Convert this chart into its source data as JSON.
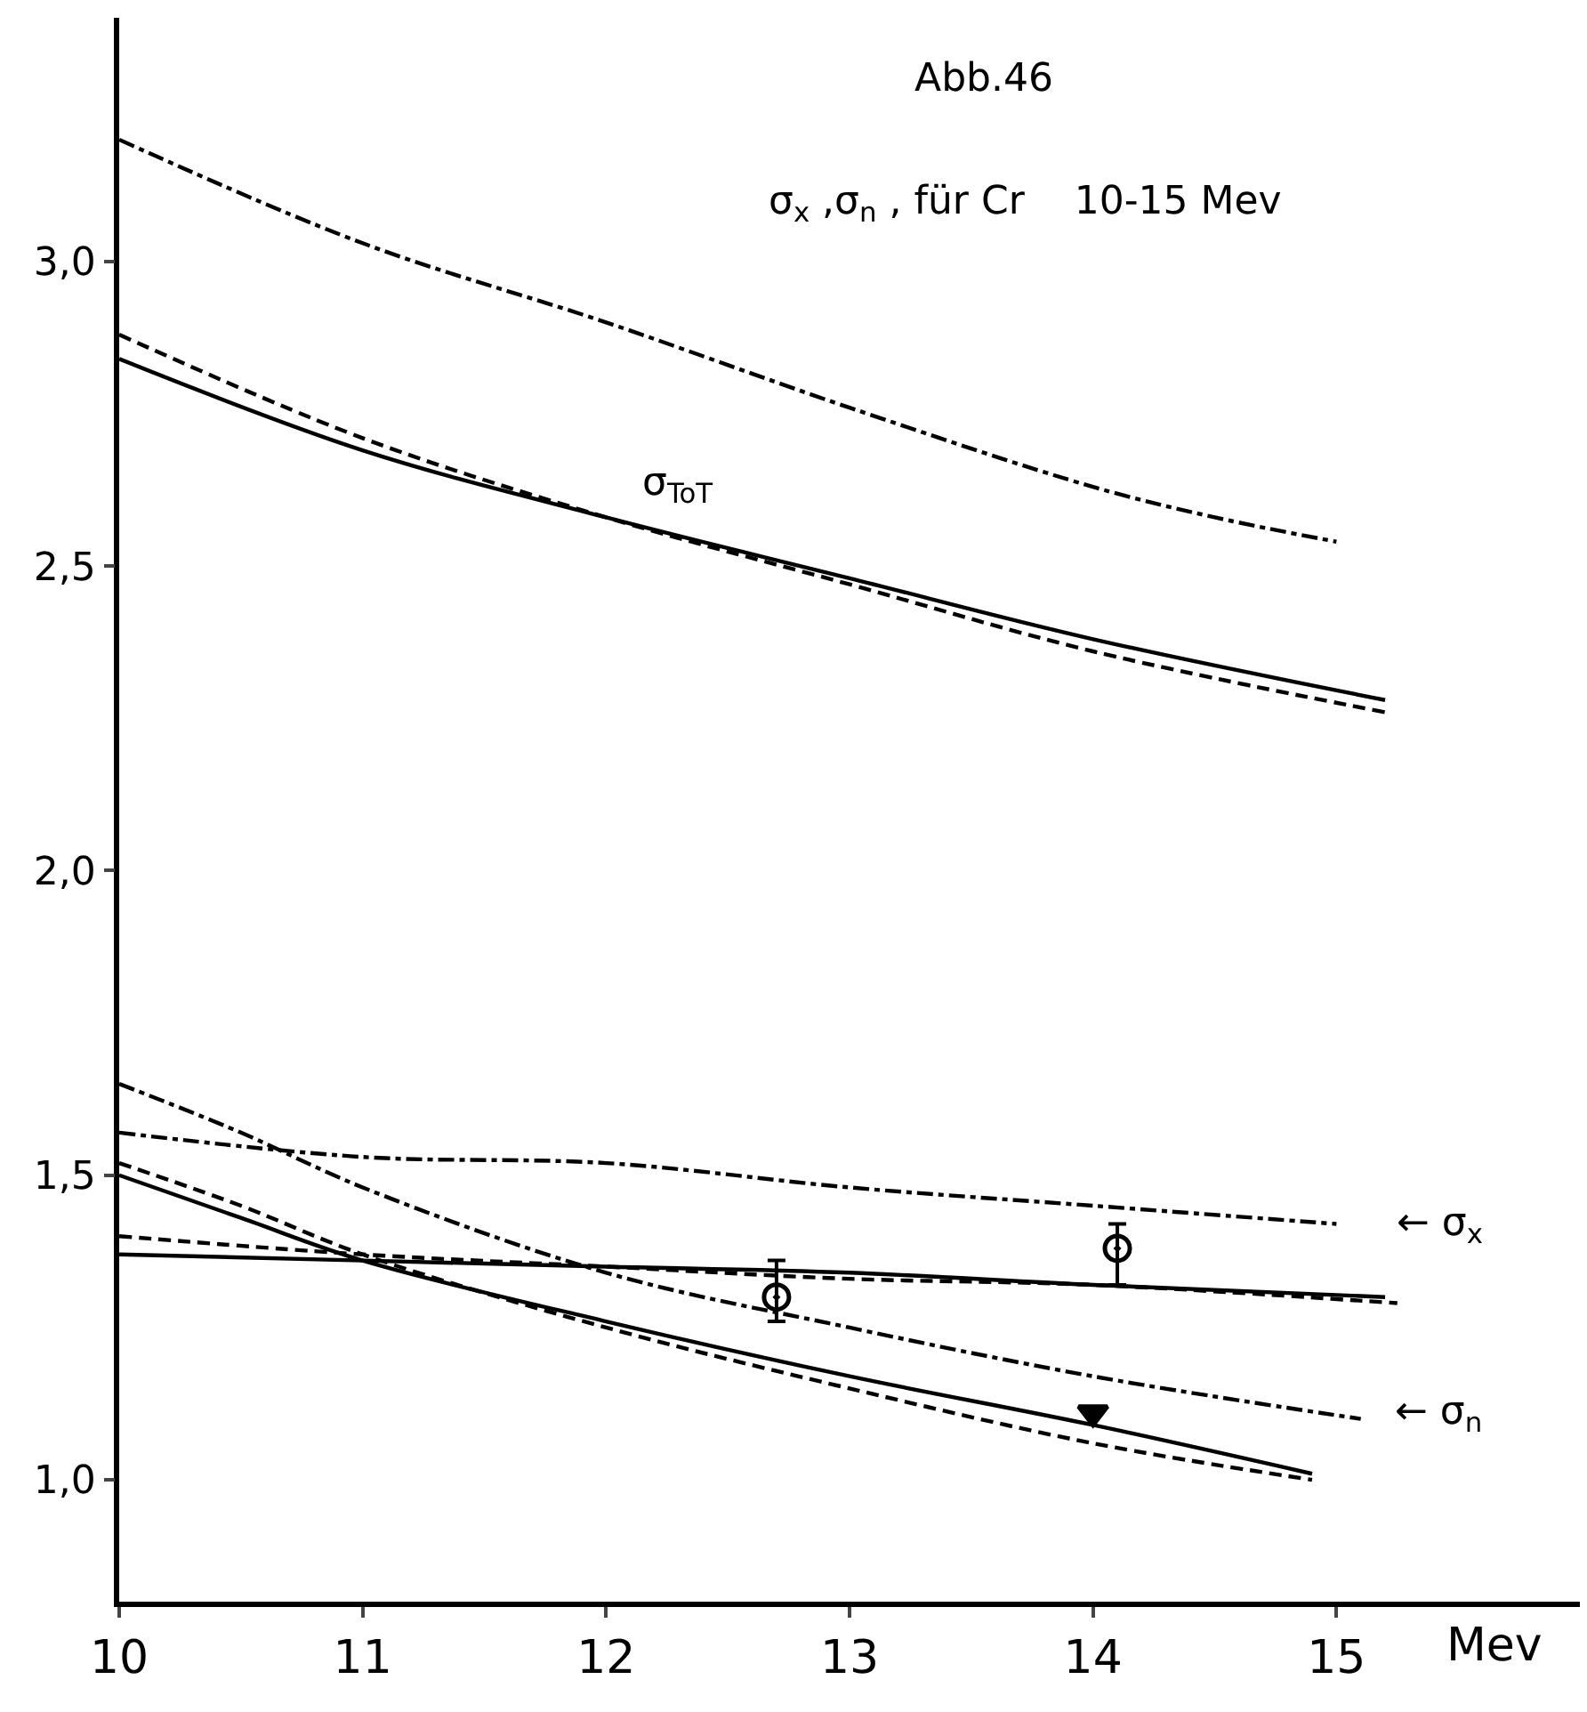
{
  "chart_data": {
    "type": "line",
    "title": "Abb.46",
    "subtitle": "σ$_{x}$ ,σ$_{n}$ , für Cr    10-15 Mev",
    "xlabel": "Mev",
    "xlim": [
      10,
      16
    ],
    "xticks": [
      10,
      11,
      12,
      13,
      14,
      15
    ],
    "ylim": [
      0.8,
      3.4
    ],
    "yticks": [
      {
        "value": 1.0,
        "label": "1,0"
      },
      {
        "value": 1.5,
        "label": "1,5"
      },
      {
        "value": 2.0,
        "label": "2,0"
      },
      {
        "value": 2.5,
        "label": "2,5"
      },
      {
        "value": 3.0,
        "label": "3,0"
      }
    ],
    "grid": false,
    "marker": "none",
    "series": [
      {
        "color": "#000000",
        "line_style": "dashdot",
        "x": [
          10,
          11,
          12,
          13,
          14,
          14.5,
          15
        ],
        "values": [
          3.2,
          3.03,
          2.9,
          2.76,
          2.63,
          2.58,
          2.54
        ]
      },
      {
        "color": "#000000",
        "line_style": "solid",
        "x": [
          10,
          11,
          12,
          13,
          14,
          15.2
        ],
        "values": [
          2.84,
          2.69,
          2.58,
          2.48,
          2.38,
          2.28
        ]
      },
      {
        "color": "#000000",
        "line_style": "dashed",
        "x": [
          10,
          11,
          12,
          13,
          14,
          15.2
        ],
        "values": [
          2.88,
          2.71,
          2.58,
          2.47,
          2.36,
          2.26
        ]
      },
      {
        "color": "#000000",
        "line_style": "dashdot",
        "x": [
          10,
          10.5,
          11,
          12,
          13,
          14,
          15.1
        ],
        "values": [
          1.65,
          1.57,
          1.48,
          1.34,
          1.25,
          1.17,
          1.1
        ]
      },
      {
        "color": "#000000",
        "line_style": "dashdot",
        "x": [
          10,
          11,
          12,
          13,
          14,
          15
        ],
        "values": [
          1.57,
          1.53,
          1.52,
          1.48,
          1.45,
          1.42
        ]
      },
      {
        "color": "#000000",
        "line_style": "solid",
        "x": [
          10,
          11,
          12,
          13,
          14,
          15.2
        ],
        "values": [
          1.37,
          1.36,
          1.35,
          1.34,
          1.32,
          1.3
        ]
      },
      {
        "color": "#000000",
        "line_style": "dashed",
        "x": [
          10,
          11,
          12,
          13,
          14,
          15.25
        ],
        "values": [
          1.4,
          1.37,
          1.35,
          1.33,
          1.32,
          1.29
        ]
      },
      {
        "color": "#000000",
        "line_style": "solid",
        "x": [
          10,
          10.5,
          11,
          12,
          13,
          14,
          14.9
        ],
        "values": [
          1.5,
          1.43,
          1.36,
          1.26,
          1.17,
          1.09,
          1.01
        ]
      },
      {
        "color": "#000000",
        "line_style": "dashed",
        "x": [
          10,
          10.5,
          11,
          12,
          13,
          14,
          14.9
        ],
        "values": [
          1.52,
          1.45,
          1.37,
          1.25,
          1.15,
          1.06,
          1.0
        ]
      },
      {
        "type": "scatter",
        "color": "#000000",
        "marker": "circle",
        "x": [
          12.7,
          14.1
        ],
        "values": [
          1.3,
          1.38
        ],
        "errors": [
          [
            1.26,
            1.36
          ],
          [
            1.32,
            1.42
          ]
        ]
      },
      {
        "type": "scatter",
        "color": "#000000",
        "marker": "triangle-down",
        "x": [
          14
        ],
        "values": [
          1.11
        ]
      }
    ],
    "annotations": [
      "σ$_{ToT}$",
      "← σ$_{x}$",
      "← σ$_{n}$"
    ]
  }
}
